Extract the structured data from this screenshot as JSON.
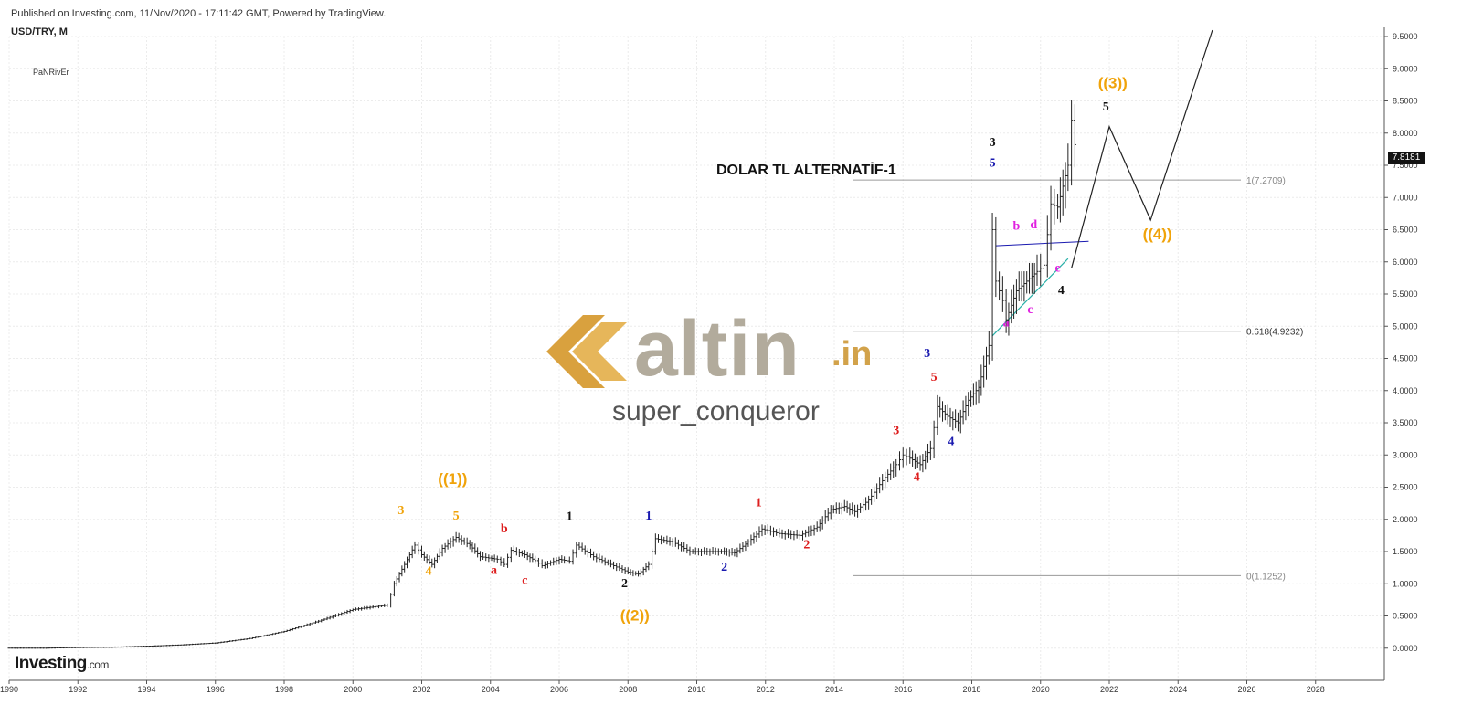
{
  "header": {
    "published": "Published on Investing.com, 11/Nov/2020 - 17:11:42 GMT, Powered by TradingView.",
    "symbol": "USD/TRY, M"
  },
  "author": "PaNRivEr",
  "chart_title": "DOLAR TL ALTERNATİF-1",
  "watermark": {
    "logo_main": "altin",
    "logo_suffix": ".in",
    "user": "super_conqueror"
  },
  "brand": {
    "name": "Investing",
    "suffix": ".com"
  },
  "current_price": "7.8181",
  "colors": {
    "orange": "#f0a30a",
    "red": "#dd1e1e",
    "blue": "#1a1ab0",
    "black": "#111111",
    "magenta": "#e020e0",
    "teal": "#29b0a8",
    "fib_line": "#9a9a9a",
    "price_bg": "#131313"
  },
  "chart_data": {
    "type": "line",
    "xlim": [
      1990,
      2030
    ],
    "ylim": [
      -0.5,
      9.5
    ],
    "x_ticks": [
      "1990",
      "1992",
      "1994",
      "1996",
      "1998",
      "2000",
      "2002",
      "2004",
      "2006",
      "2008",
      "2010",
      "2012",
      "2014",
      "2016",
      "2018",
      "2020",
      "2022",
      "2024",
      "2026",
      "2028"
    ],
    "y_ticks": [
      "9.5000",
      "9.0000",
      "8.5000",
      "8.0000",
      "7.5000",
      "7.0000",
      "6.5000",
      "6.0000",
      "5.5000",
      "5.0000",
      "4.5000",
      "4.0000",
      "3.5000",
      "3.0000",
      "2.5000",
      "2.0000",
      "1.5000",
      "1.0000",
      "0.5000",
      "0.0000"
    ],
    "series": [
      {
        "points": [
          [
            1990.0,
            0.0
          ],
          [
            1991.0,
            0.0
          ],
          [
            1992.0,
            0.01
          ],
          [
            1993.0,
            0.015
          ],
          [
            1994.0,
            0.03
          ],
          [
            1995.0,
            0.05
          ],
          [
            1996.0,
            0.08
          ],
          [
            1997.0,
            0.15
          ],
          [
            1998.0,
            0.26
          ],
          [
            1999.0,
            0.42
          ],
          [
            2000.0,
            0.6
          ],
          [
            2001.0,
            0.67
          ],
          [
            2001.2,
            1.0
          ],
          [
            2001.5,
            1.3
          ],
          [
            2001.8,
            1.6
          ],
          [
            2002.0,
            1.45
          ],
          [
            2002.3,
            1.3
          ],
          [
            2002.6,
            1.55
          ],
          [
            2003.0,
            1.72
          ],
          [
            2003.4,
            1.6
          ],
          [
            2003.7,
            1.42
          ],
          [
            2004.2,
            1.38
          ],
          [
            2004.4,
            1.3
          ],
          [
            2004.6,
            1.52
          ],
          [
            2005.0,
            1.45
          ],
          [
            2005.3,
            1.36
          ],
          [
            2005.5,
            1.28
          ],
          [
            2006.0,
            1.38
          ],
          [
            2006.3,
            1.35
          ],
          [
            2006.5,
            1.6
          ],
          [
            2007.0,
            1.42
          ],
          [
            2007.5,
            1.3
          ],
          [
            2008.0,
            1.18
          ],
          [
            2008.3,
            1.15
          ],
          [
            2008.6,
            1.3
          ],
          [
            2008.8,
            1.7
          ],
          [
            2009.3,
            1.65
          ],
          [
            2009.8,
            1.5
          ],
          [
            2010.3,
            1.5
          ],
          [
            2010.8,
            1.5
          ],
          [
            2011.1,
            1.48
          ],
          [
            2011.5,
            1.65
          ],
          [
            2011.9,
            1.85
          ],
          [
            2012.4,
            1.78
          ],
          [
            2013.0,
            1.75
          ],
          [
            2013.5,
            1.88
          ],
          [
            2013.9,
            2.15
          ],
          [
            2014.3,
            2.2
          ],
          [
            2014.6,
            2.12
          ],
          [
            2015.0,
            2.3
          ],
          [
            2015.4,
            2.6
          ],
          [
            2015.8,
            2.85
          ],
          [
            2016.0,
            3.0
          ],
          [
            2016.2,
            2.95
          ],
          [
            2016.5,
            2.85
          ],
          [
            2016.8,
            3.1
          ],
          [
            2017.0,
            3.75
          ],
          [
            2017.3,
            3.6
          ],
          [
            2017.6,
            3.5
          ],
          [
            2017.9,
            3.85
          ],
          [
            2018.2,
            4.05
          ],
          [
            2018.5,
            4.7
          ],
          [
            2018.6,
            6.5
          ],
          [
            2018.7,
            5.7
          ],
          [
            2018.9,
            5.4
          ],
          [
            2019.0,
            5.1
          ],
          [
            2019.3,
            5.55
          ],
          [
            2019.6,
            5.7
          ],
          [
            2019.9,
            5.85
          ],
          [
            2020.1,
            5.95
          ],
          [
            2020.3,
            6.9
          ],
          [
            2020.5,
            6.85
          ],
          [
            2020.8,
            7.5
          ],
          [
            2020.9,
            8.2
          ],
          [
            2021.0,
            7.82
          ]
        ]
      }
    ],
    "projection": [
      [
        2020.9,
        5.9
      ],
      [
        2022.0,
        8.1
      ],
      [
        2023.2,
        6.65
      ],
      [
        2025.0,
        9.6
      ]
    ],
    "fib_levels": [
      {
        "label": "1(7.2709)",
        "value": 7.2709
      },
      {
        "label": "0.618(4.9232)",
        "value": 4.9232
      },
      {
        "label": "0(1.1252)",
        "value": 1.1252
      }
    ],
    "wave_labels": [
      {
        "text": "3",
        "x": 2001.4,
        "y": 2.08,
        "color": "orange"
      },
      {
        "text": "4",
        "x": 2002.2,
        "y": 1.14,
        "color": "orange"
      },
      {
        "text": "5",
        "x": 2003.0,
        "y": 2.0,
        "color": "orange"
      },
      {
        "text": "((1))",
        "x": 2002.9,
        "y": 2.55,
        "color": "orange"
      },
      {
        "text": "b",
        "x": 2004.4,
        "y": 1.8,
        "color": "red"
      },
      {
        "text": "a",
        "x": 2004.1,
        "y": 1.15,
        "color": "red"
      },
      {
        "text": "c",
        "x": 2005.0,
        "y": 1.0,
        "color": "red"
      },
      {
        "text": "1",
        "x": 2006.3,
        "y": 1.99,
        "color": "black"
      },
      {
        "text": "2",
        "x": 2007.9,
        "y": 0.95,
        "color": "black"
      },
      {
        "text": "((2))",
        "x": 2008.2,
        "y": 0.43,
        "color": "orange"
      },
      {
        "text": "1",
        "x": 2008.6,
        "y": 2.0,
        "color": "blue"
      },
      {
        "text": "2",
        "x": 2010.8,
        "y": 1.2,
        "color": "blue"
      },
      {
        "text": "1",
        "x": 2011.8,
        "y": 2.2,
        "color": "red"
      },
      {
        "text": "2",
        "x": 2013.2,
        "y": 1.55,
        "color": "red"
      },
      {
        "text": "3",
        "x": 2015.8,
        "y": 3.32,
        "color": "red"
      },
      {
        "text": "4",
        "x": 2016.4,
        "y": 2.6,
        "color": "red"
      },
      {
        "text": "5",
        "x": 2016.9,
        "y": 4.15,
        "color": "red"
      },
      {
        "text": "3",
        "x": 2016.7,
        "y": 4.52,
        "color": "blue"
      },
      {
        "text": "4",
        "x": 2017.4,
        "y": 3.15,
        "color": "blue"
      },
      {
        "text": "3",
        "x": 2018.6,
        "y": 7.8,
        "color": "black"
      },
      {
        "text": "5",
        "x": 2018.6,
        "y": 7.48,
        "color": "blue"
      },
      {
        "text": "b",
        "x": 2019.3,
        "y": 6.5,
        "color": "magenta"
      },
      {
        "text": "d",
        "x": 2019.8,
        "y": 6.52,
        "color": "magenta"
      },
      {
        "text": "a",
        "x": 2019.0,
        "y": 5.0,
        "color": "magenta"
      },
      {
        "text": "c",
        "x": 2019.7,
        "y": 5.2,
        "color": "magenta"
      },
      {
        "text": "e",
        "x": 2020.5,
        "y": 5.85,
        "color": "magenta"
      },
      {
        "text": "4",
        "x": 2020.6,
        "y": 5.5,
        "color": "black"
      },
      {
        "text": "5",
        "x": 2021.9,
        "y": 8.35,
        "color": "black"
      },
      {
        "text": "((3))",
        "x": 2022.1,
        "y": 8.7,
        "color": "orange"
      },
      {
        "text": "((4))",
        "x": 2023.4,
        "y": 6.35,
        "color": "orange"
      }
    ],
    "title": "DOLAR TL ALTERNATİF-1",
    "grid": true
  }
}
